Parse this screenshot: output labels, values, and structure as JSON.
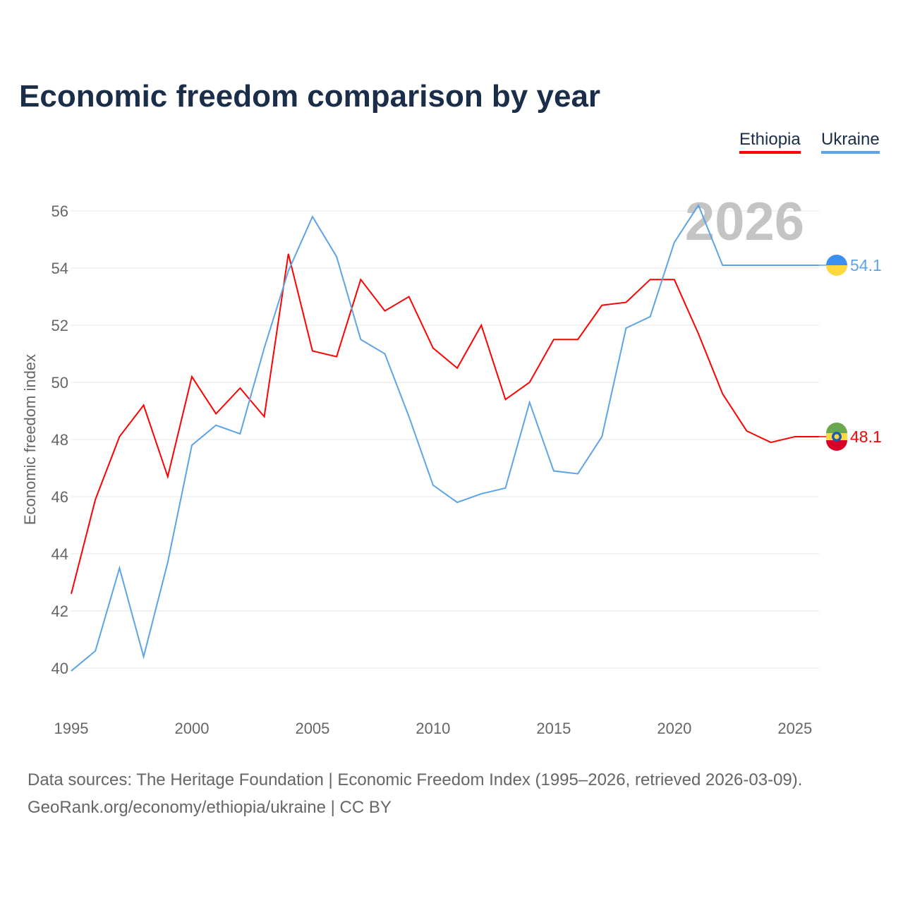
{
  "title": "Economic freedom comparison by year",
  "footer": {
    "line1": "Data sources: The Heritage Foundation | Economic Freedom Index (1995–2026, retrieved 2026-03-09).",
    "line2": "GeoRank.org/economy/ethiopia/ukraine | CC BY"
  },
  "chart_data": {
    "type": "line",
    "title": "Economic freedom comparison by year",
    "xlabel": "",
    "ylabel": "Economic freedom index",
    "watermark": "2026",
    "xlim": [
      1995,
      2026
    ],
    "ylim": [
      40,
      56
    ],
    "xticks": [
      1995,
      2000,
      2005,
      2010,
      2015,
      2020,
      2025
    ],
    "yticks": [
      40,
      42,
      44,
      46,
      48,
      50,
      52,
      54,
      56
    ],
    "grid": true,
    "legend_position": "top-right",
    "x": [
      1995,
      1996,
      1997,
      1998,
      1999,
      2000,
      2001,
      2002,
      2003,
      2004,
      2005,
      2006,
      2007,
      2008,
      2009,
      2010,
      2011,
      2012,
      2013,
      2014,
      2015,
      2016,
      2017,
      2018,
      2019,
      2020,
      2021,
      2022,
      2023,
      2024,
      2025,
      2026
    ],
    "series": [
      {
        "name": "Ethiopia",
        "color": "#ff0000",
        "end_label": "48.1",
        "values": [
          42.6,
          45.9,
          48.1,
          49.2,
          46.7,
          50.2,
          48.9,
          49.8,
          48.8,
          54.5,
          51.1,
          50.9,
          53.6,
          52.5,
          53.0,
          51.2,
          50.5,
          52.0,
          49.4,
          50.0,
          51.5,
          51.5,
          52.7,
          52.8,
          53.6,
          53.6,
          51.7,
          49.6,
          48.3,
          47.9,
          48.1,
          48.1
        ]
      },
      {
        "name": "Ukraine",
        "color": "#5ba4e8",
        "end_label": "54.1",
        "values": [
          39.9,
          40.6,
          43.5,
          40.4,
          43.7,
          47.8,
          48.5,
          48.2,
          51.2,
          53.9,
          55.8,
          54.4,
          51.5,
          51.0,
          48.8,
          46.4,
          45.8,
          46.1,
          46.3,
          49.3,
          46.9,
          46.8,
          48.1,
          51.9,
          52.3,
          54.9,
          56.2,
          54.1,
          54.1,
          54.1,
          54.1,
          54.1
        ]
      }
    ]
  }
}
